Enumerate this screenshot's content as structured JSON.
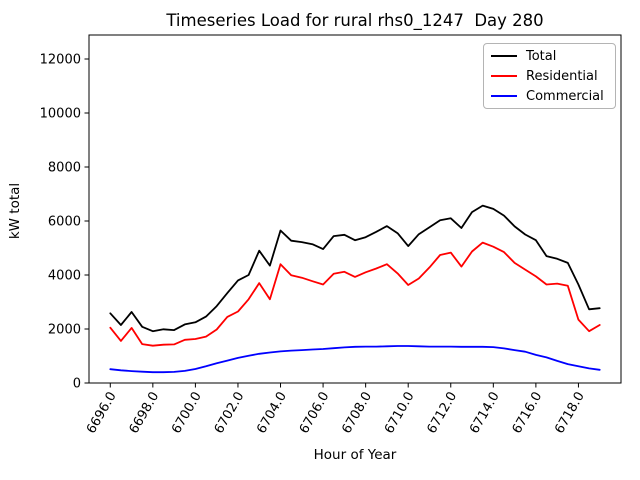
{
  "title": "Timeseries Load for rural rhs0_1247  Day 280",
  "axes": {
    "xlabel": "Hour of Year",
    "ylabel": "kW total"
  },
  "chart_data": {
    "type": "line",
    "title": "Timeseries Load for rural rhs0_1247  Day 280",
    "xlabel": "Hour of Year",
    "ylabel": "kW total",
    "grid": false,
    "legend_position": "upper right",
    "xlim": [
      6695.0,
      6720.0
    ],
    "ylim": [
      0,
      12889
    ],
    "xticks": [
      6696,
      6698,
      6700,
      6702,
      6704,
      6706,
      6708,
      6710,
      6712,
      6714,
      6716,
      6718
    ],
    "xtick_labels": [
      "6696.0",
      "6698.0",
      "6700.0",
      "6702.0",
      "6704.0",
      "6706.0",
      "6708.0",
      "6710.0",
      "6712.0",
      "6714.0",
      "6716.0",
      "6718.0"
    ],
    "yticks": [
      0,
      2000,
      4000,
      6000,
      8000,
      10000,
      12000
    ],
    "ytick_labels": [
      "0",
      "2000",
      "4000",
      "6000",
      "8000",
      "10000",
      "12000"
    ],
    "x": [
      6696.0,
      6696.5,
      6697.0,
      6697.5,
      6698.0,
      6698.5,
      6699.0,
      6699.5,
      6700.0,
      6700.5,
      6701.0,
      6701.5,
      6702.0,
      6702.5,
      6703.0,
      6703.5,
      6704.0,
      6704.5,
      6705.0,
      6705.5,
      6706.0,
      6706.5,
      6707.0,
      6707.5,
      6708.0,
      6708.5,
      6709.0,
      6709.5,
      6710.0,
      6710.5,
      6711.0,
      6711.5,
      6712.0,
      6712.5,
      6713.0,
      6713.5,
      6714.0,
      6714.5,
      6715.0,
      6715.5,
      6716.0,
      6716.5,
      6717.0,
      6717.5,
      6718.0,
      6718.5,
      6719.0
    ],
    "series": [
      {
        "name": "Total",
        "color": "#000000",
        "values": [
          2580,
          2150,
          2630,
          2080,
          1920,
          1990,
          1960,
          2170,
          2250,
          2460,
          2850,
          3330,
          3800,
          4000,
          4900,
          4350,
          5650,
          5270,
          5220,
          5140,
          4960,
          5440,
          5490,
          5290,
          5400,
          5600,
          5810,
          5550,
          5070,
          5510,
          5770,
          6030,
          6100,
          5740,
          6330,
          6570,
          6450,
          6200,
          5800,
          5500,
          5290,
          4700,
          4600,
          4450,
          3650,
          2730,
          2770
        ]
      },
      {
        "name": "Residential",
        "color": "#ff0000",
        "values": [
          2050,
          1560,
          2040,
          1440,
          1380,
          1420,
          1430,
          1600,
          1630,
          1720,
          1980,
          2450,
          2650,
          3100,
          3700,
          3100,
          4400,
          3990,
          3900,
          3770,
          3650,
          4050,
          4120,
          3930,
          4100,
          4240,
          4400,
          4060,
          3630,
          3870,
          4280,
          4740,
          4830,
          4310,
          4870,
          5200,
          5050,
          4850,
          4450,
          4200,
          3950,
          3650,
          3680,
          3600,
          2350,
          1920,
          2150
        ]
      },
      {
        "name": "Commercial",
        "color": "#0000ff",
        "values": [
          510,
          470,
          440,
          420,
          400,
          400,
          410,
          450,
          520,
          620,
          730,
          830,
          930,
          1010,
          1080,
          1130,
          1170,
          1200,
          1220,
          1240,
          1260,
          1290,
          1320,
          1340,
          1350,
          1350,
          1360,
          1370,
          1370,
          1360,
          1350,
          1350,
          1350,
          1340,
          1340,
          1340,
          1330,
          1280,
          1220,
          1160,
          1040,
          950,
          820,
          700,
          620,
          540,
          490
        ]
      }
    ]
  }
}
